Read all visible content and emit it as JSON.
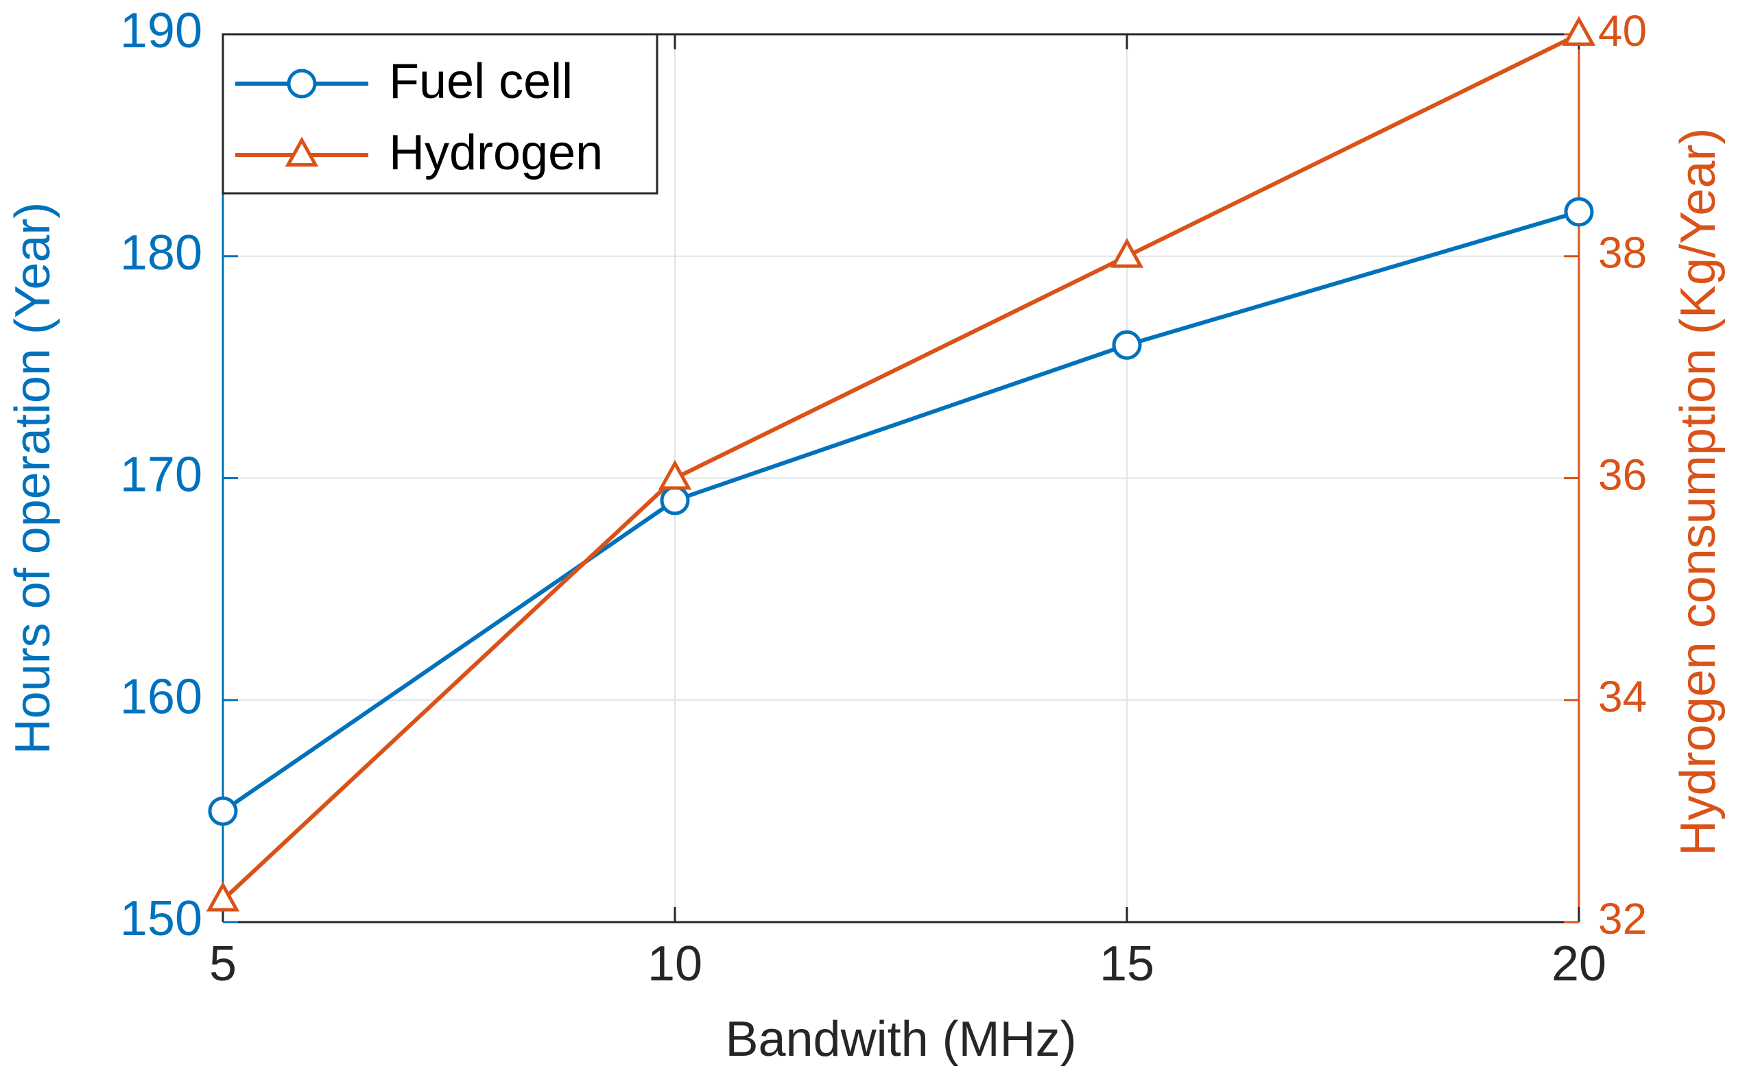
{
  "chart_data": {
    "type": "line",
    "x": [
      5,
      10,
      15,
      20
    ],
    "xlabel": "Bandwith (MHz)",
    "xlim": [
      5,
      20
    ],
    "xticks": [
      5,
      10,
      15,
      20
    ],
    "xtick_labels": [
      "5",
      "10",
      "15",
      "20"
    ],
    "grid": true,
    "legend_position": "top-left",
    "series": [
      {
        "name": "Fuel cell",
        "axis": "left",
        "marker": "circle",
        "color": "#0072BD",
        "values": [
          155,
          169,
          176,
          182
        ]
      },
      {
        "name": "Hydrogen",
        "axis": "right",
        "marker": "triangle",
        "color": "#D95319",
        "values": [
          32.2,
          36,
          38,
          40
        ]
      }
    ],
    "left_axis": {
      "label": "Hours of operation (Year)",
      "ylim": [
        150,
        190
      ],
      "ticks": [
        150,
        160,
        170,
        180,
        190
      ],
      "tick_labels": [
        "150",
        "160",
        "170",
        "180",
        "190"
      ],
      "color": "#0072BD"
    },
    "right_axis": {
      "label": "Hydrogen consumption (Kg/Year)",
      "ylim": [
        32,
        40
      ],
      "ticks": [
        32,
        34,
        36,
        38,
        40
      ],
      "tick_labels": [
        "32",
        "34",
        "36",
        "38",
        "40"
      ],
      "color": "#D95319"
    }
  }
}
